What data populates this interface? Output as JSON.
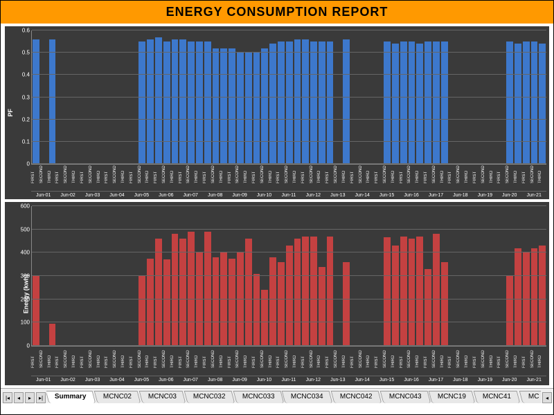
{
  "title": "ENERGY CONSUMPTION REPORT",
  "colors": {
    "title_bg": "#ff9900",
    "panel_bg": "#3a3a3a",
    "grid": "#666666",
    "text": "#ffffff",
    "pf_bar": "#3d78cc",
    "energy_bar": "#c44141"
  },
  "shifts": [
    "FIRST",
    "SECOND",
    "THIRD"
  ],
  "dates": [
    "Jun-01",
    "Jun-02",
    "Jun-03",
    "Jun-04",
    "Jun-05",
    "Jun-06",
    "Jun-07",
    "Jun-08",
    "Jun-09",
    "Jun-10",
    "Jun-11",
    "Jun-12",
    "Jun-13",
    "Jun-14",
    "Jun-15",
    "Jun-16",
    "Jun-17",
    "Jun-18",
    "Jun-19",
    "Jun-20",
    "Jun-21"
  ],
  "pf_chart": {
    "type": "bar",
    "ylabel": "PF",
    "ylim": [
      0,
      0.6
    ],
    "ytick_step": 0.1,
    "yticks": [
      "0",
      "0.1",
      "0.2",
      "0.3",
      "0.4",
      "0.5",
      "0.6"
    ],
    "bar_color": "#3d78cc",
    "background": "#3a3a3a",
    "grid_color": "#666666",
    "label_fontsize": 9,
    "tick_fontsize": 8,
    "data": [
      [
        0.56,
        0,
        0.56
      ],
      [
        0,
        0,
        0
      ],
      [
        0,
        0,
        0
      ],
      [
        0,
        0,
        0
      ],
      [
        0,
        0.55,
        0.56
      ],
      [
        0.57,
        0.55,
        0.56
      ],
      [
        0.56,
        0.55,
        0.55
      ],
      [
        0.55,
        0.52,
        0.52
      ],
      [
        0.52,
        0.5,
        0.5
      ],
      [
        0.5,
        0.52,
        0.54
      ],
      [
        0.55,
        0.55,
        0.56
      ],
      [
        0.56,
        0.55,
        0.55
      ],
      [
        0.55,
        0,
        0.56
      ],
      [
        0,
        0,
        0
      ],
      [
        0,
        0.55,
        0.54
      ],
      [
        0.55,
        0.55,
        0.54
      ],
      [
        0.55,
        0.55,
        0.55
      ],
      [
        0,
        0,
        0
      ],
      [
        0,
        0,
        0
      ],
      [
        0,
        0.55,
        0.54
      ],
      [
        0.55,
        0.55,
        0.54
      ]
    ]
  },
  "energy_chart": {
    "type": "bar",
    "ylabel": "Energy (kwh)",
    "ylim": [
      0,
      600
    ],
    "ytick_step": 100,
    "yticks": [
      "0",
      "100",
      "200",
      "300",
      "400",
      "500",
      "600"
    ],
    "bar_color": "#c44141",
    "background": "#3a3a3a",
    "grid_color": "#666666",
    "label_fontsize": 9,
    "tick_fontsize": 8,
    "data": [
      [
        300,
        0,
        95
      ],
      [
        0,
        0,
        0
      ],
      [
        0,
        0,
        0
      ],
      [
        0,
        0,
        0
      ],
      [
        0,
        300,
        375
      ],
      [
        460,
        370,
        480
      ],
      [
        460,
        490,
        400
      ],
      [
        490,
        380,
        400
      ],
      [
        375,
        400,
        460
      ],
      [
        310,
        240,
        380
      ],
      [
        360,
        430,
        460
      ],
      [
        470,
        470,
        340
      ],
      [
        470,
        0,
        360
      ],
      [
        0,
        0,
        0
      ],
      [
        0,
        465,
        430
      ],
      [
        470,
        460,
        470
      ],
      [
        330,
        480,
        360
      ],
      [
        0,
        0,
        0
      ],
      [
        0,
        0,
        0
      ],
      [
        0,
        300,
        420
      ],
      [
        400,
        420,
        430
      ]
    ]
  },
  "tabs": {
    "active": "Summary",
    "items": [
      "Summary",
      "MCNC02",
      "MCNC03",
      "MCNC032",
      "MCNC033",
      "MCNC034",
      "MCNC042",
      "MCNC043",
      "MCNC19",
      "MCNC41",
      "MC"
    ]
  }
}
